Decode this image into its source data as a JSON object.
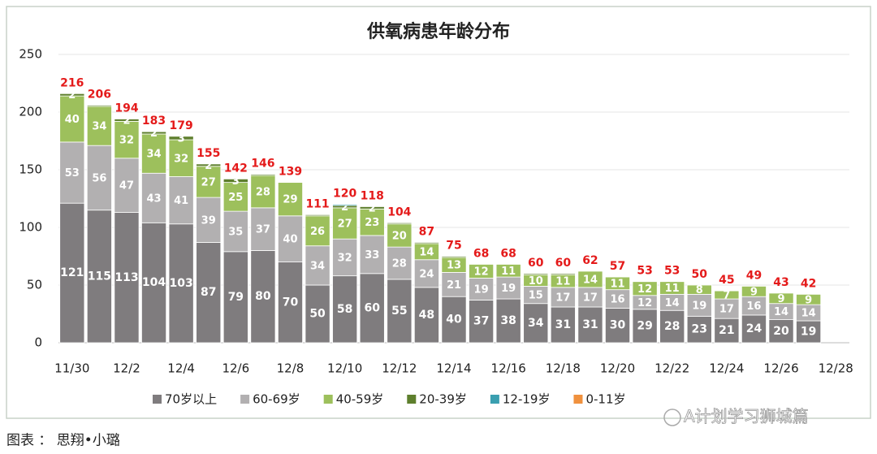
{
  "chart_data": {
    "type": "stacked-bar",
    "title": "供氧病患年龄分布",
    "categories": [
      "11/30",
      null,
      "12/2",
      null,
      "12/4",
      null,
      "12/6",
      null,
      "12/8",
      null,
      "12/10",
      null,
      "12/12",
      null,
      "12/14",
      null,
      "12/16",
      null,
      "12/18",
      null,
      "12/20",
      null,
      "12/22",
      null,
      "12/24",
      null,
      "12/26",
      null,
      "12/28"
    ],
    "series": [
      {
        "name": "70岁以上",
        "color": "#7f7c7e",
        "values": [
          121,
          115,
          113,
          104,
          103,
          87,
          79,
          80,
          70,
          50,
          58,
          60,
          55,
          48,
          40,
          37,
          38,
          34,
          31,
          31,
          30,
          29,
          28,
          23,
          21,
          24,
          20,
          19,
          null
        ]
      },
      {
        "name": "60-69岁",
        "color": "#b2b0b1",
        "values": [
          53,
          56,
          47,
          43,
          41,
          39,
          35,
          37,
          40,
          34,
          32,
          33,
          28,
          24,
          21,
          19,
          19,
          15,
          17,
          17,
          16,
          12,
          14,
          19,
          17,
          16,
          14,
          14,
          null
        ]
      },
      {
        "name": "40-59岁",
        "color": "#9dc05c",
        "values": [
          40,
          34,
          32,
          34,
          32,
          27,
          25,
          28,
          29,
          26,
          27,
          23,
          20,
          14,
          13,
          12,
          11,
          10,
          11,
          14,
          11,
          12,
          11,
          8,
          7,
          9,
          9,
          9,
          null
        ]
      },
      {
        "name": "20-39岁",
        "color": "#5e7f2d",
        "values": [
          2,
          1,
          2,
          2,
          3,
          2,
          3,
          1,
          null,
          1,
          2,
          2,
          1,
          1,
          1,
          null,
          null,
          1,
          1,
          null,
          null,
          null,
          null,
          null,
          null,
          null,
          null,
          null,
          null
        ]
      },
      {
        "name": "12-19岁",
        "color": "#3a9fb0",
        "values": [
          null,
          null,
          null,
          null,
          null,
          null,
          null,
          null,
          null,
          null,
          1,
          null,
          null,
          null,
          null,
          null,
          null,
          null,
          null,
          null,
          null,
          null,
          null,
          null,
          null,
          null,
          null,
          null,
          null
        ]
      },
      {
        "name": "0-11岁",
        "color": "#f0913e",
        "values": [
          null,
          null,
          null,
          null,
          null,
          null,
          null,
          null,
          null,
          null,
          null,
          null,
          null,
          null,
          null,
          null,
          null,
          null,
          null,
          null,
          null,
          null,
          null,
          null,
          null,
          null,
          null,
          null,
          null
        ]
      }
    ],
    "totals": [
      216,
      206,
      194,
      183,
      179,
      155,
      142,
      146,
      139,
      111,
      120,
      118,
      104,
      87,
      75,
      68,
      68,
      60,
      60,
      62,
      57,
      53,
      53,
      50,
      45,
      49,
      43,
      42,
      null
    ],
    "total_color": "#e41a1a",
    "ylim": [
      0,
      250
    ],
    "yticks": [
      0,
      50,
      100,
      150,
      200,
      250
    ],
    "grid": true,
    "source": "图表 ： 思翔•小璐",
    "watermark": "A计划学习狮城篇"
  }
}
